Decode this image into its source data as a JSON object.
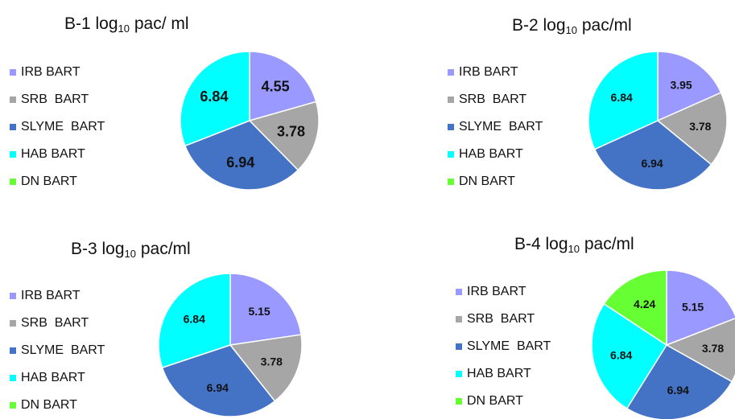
{
  "colors": {
    "irb": "#9999ff",
    "srb": "#a6a6a6",
    "slyme": "#4472c4",
    "hab": "#00ffff",
    "dn": "#66ff33"
  },
  "legend_labels": [
    "IRB BART",
    "SRB  BART",
    "SLYME  BART",
    "HAB BART",
    "DN BART"
  ],
  "chart_data": [
    {
      "type": "pie",
      "title": {
        "prefix": "B-1 log",
        "sub": "10",
        "suffix": " pac/ ml"
      },
      "categories": [
        "IRB BART",
        "SRB  BART",
        "SLYME  BART",
        "HAB BART",
        "DN BART"
      ],
      "values": [
        4.55,
        3.78,
        6.94,
        6.84,
        0
      ],
      "labels": [
        "4.55",
        "3.78",
        "6.94",
        "6.84",
        ""
      ],
      "legend": "left"
    },
    {
      "type": "pie",
      "title": {
        "prefix": "B-2 log",
        "sub": "10",
        "suffix": "  pac/ml"
      },
      "categories": [
        "IRB BART",
        "SRB  BART",
        "SLYME  BART",
        "HAB BART",
        "DN BART"
      ],
      "values": [
        3.95,
        3.78,
        6.94,
        6.84,
        0
      ],
      "labels": [
        "3.95",
        "3.78",
        "6.94",
        "6.84",
        ""
      ],
      "legend": "left"
    },
    {
      "type": "pie",
      "title": {
        "prefix": "B-3 log",
        "sub": "10",
        "suffix": " pac/ml"
      },
      "categories": [
        "IRB BART",
        "SRB  BART",
        "SLYME  BART",
        "HAB BART",
        "DN BART"
      ],
      "values": [
        5.15,
        3.78,
        6.94,
        6.84,
        0
      ],
      "labels": [
        "5.15",
        "3.78",
        "6.94",
        "6.84",
        ""
      ],
      "legend": "left"
    },
    {
      "type": "pie",
      "title": {
        "prefix": "B-4 log",
        "sub": "10",
        "suffix": " pac/ml"
      },
      "categories": [
        "IRB BART",
        "SRB  BART",
        "SLYME  BART",
        "HAB BART",
        "DN BART"
      ],
      "values": [
        5.15,
        3.78,
        6.94,
        6.84,
        4.24
      ],
      "labels": [
        "5.15",
        "3.78",
        "6.94",
        "6.84",
        "4.24"
      ],
      "legend": "left"
    }
  ]
}
